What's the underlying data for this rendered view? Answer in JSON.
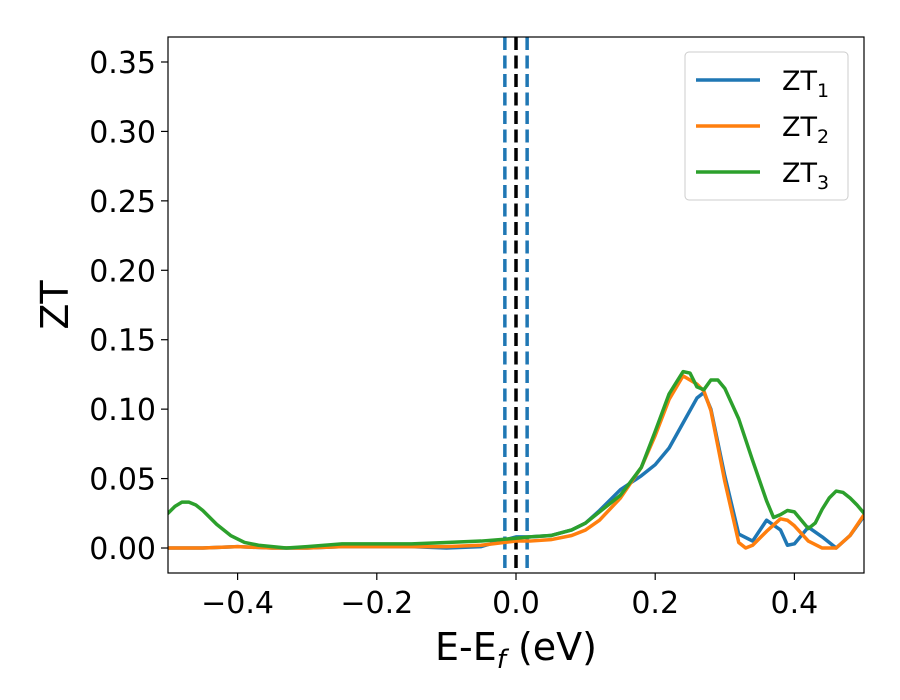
{
  "chart_data": {
    "type": "line",
    "title": "",
    "xlabel": "E-E",
    "xlabel_sub": "f",
    "xlabel_suffix": " (eV)",
    "ylabel": "ZT",
    "xlim": [
      -0.5,
      0.5
    ],
    "ylim": [
      -0.018,
      0.368
    ],
    "xticks": [
      -0.4,
      -0.2,
      0.0,
      0.2,
      0.4
    ],
    "xtick_labels": [
      "−0.4",
      "−0.2",
      "0.0",
      "0.2",
      "0.4"
    ],
    "yticks": [
      0.0,
      0.05,
      0.1,
      0.15,
      0.2,
      0.25,
      0.3,
      0.35
    ],
    "ytick_labels": [
      "0.00",
      "0.05",
      "0.10",
      "0.15",
      "0.20",
      "0.25",
      "0.30",
      "0.35"
    ],
    "grid": false,
    "legend_position": "top-right",
    "vertical_lines": [
      {
        "x": -0.016,
        "color": "#1f77b4",
        "style": "dashed"
      },
      {
        "x": 0.0,
        "color": "#000000",
        "style": "dashed"
      },
      {
        "x": 0.016,
        "color": "#1f77b4",
        "style": "dashed"
      }
    ],
    "series": [
      {
        "name": "ZT",
        "name_sub": "1",
        "color": "#1f77b4",
        "x": [
          -0.5,
          -0.45,
          -0.4,
          -0.35,
          -0.3,
          -0.25,
          -0.2,
          -0.15,
          -0.1,
          -0.05,
          -0.03,
          0.0,
          0.02,
          0.05,
          0.08,
          0.1,
          0.12,
          0.15,
          0.18,
          0.2,
          0.22,
          0.24,
          0.26,
          0.27,
          0.28,
          0.3,
          0.32,
          0.34,
          0.36,
          0.38,
          0.39,
          0.4,
          0.42,
          0.44,
          0.46,
          0.48,
          0.5
        ],
        "y": [
          0.0,
          0.0,
          0.001,
          0.0,
          0.0,
          0.001,
          0.001,
          0.001,
          0.0,
          0.001,
          0.004,
          0.008,
          0.008,
          0.009,
          0.013,
          0.018,
          0.027,
          0.042,
          0.052,
          0.06,
          0.072,
          0.09,
          0.108,
          0.112,
          0.1,
          0.052,
          0.01,
          0.005,
          0.02,
          0.013,
          0.002,
          0.003,
          0.015,
          0.008,
          0.0,
          0.009,
          0.023
        ]
      },
      {
        "name": "ZT",
        "name_sub": "2",
        "color": "#ff7f0e",
        "x": [
          -0.5,
          -0.45,
          -0.4,
          -0.35,
          -0.3,
          -0.25,
          -0.2,
          -0.15,
          -0.1,
          -0.05,
          0.0,
          0.02,
          0.05,
          0.08,
          0.1,
          0.12,
          0.15,
          0.18,
          0.2,
          0.22,
          0.24,
          0.26,
          0.27,
          0.28,
          0.3,
          0.32,
          0.33,
          0.34,
          0.36,
          0.38,
          0.39,
          0.4,
          0.42,
          0.44,
          0.46,
          0.48,
          0.5
        ],
        "y": [
          0.0,
          0.0,
          0.001,
          0.0,
          0.0,
          0.001,
          0.001,
          0.001,
          0.001,
          0.002,
          0.005,
          0.005,
          0.006,
          0.009,
          0.013,
          0.02,
          0.036,
          0.058,
          0.081,
          0.107,
          0.124,
          0.118,
          0.113,
          0.099,
          0.048,
          0.004,
          0.0,
          0.002,
          0.012,
          0.021,
          0.02,
          0.016,
          0.005,
          0.0,
          0.0,
          0.009,
          0.024
        ]
      },
      {
        "name": "ZT",
        "name_sub": "3",
        "color": "#2ca02c",
        "x": [
          -0.5,
          -0.49,
          -0.48,
          -0.47,
          -0.46,
          -0.45,
          -0.43,
          -0.41,
          -0.39,
          -0.37,
          -0.35,
          -0.33,
          -0.3,
          -0.25,
          -0.2,
          -0.15,
          -0.1,
          -0.05,
          0.0,
          0.02,
          0.05,
          0.08,
          0.1,
          0.12,
          0.15,
          0.18,
          0.2,
          0.22,
          0.24,
          0.25,
          0.26,
          0.27,
          0.28,
          0.29,
          0.3,
          0.32,
          0.34,
          0.36,
          0.37,
          0.38,
          0.39,
          0.4,
          0.41,
          0.42,
          0.43,
          0.44,
          0.45,
          0.46,
          0.47,
          0.48,
          0.49,
          0.5
        ],
        "y": [
          0.025,
          0.03,
          0.033,
          0.033,
          0.031,
          0.027,
          0.017,
          0.009,
          0.004,
          0.002,
          0.001,
          0.0,
          0.001,
          0.003,
          0.003,
          0.003,
          0.004,
          0.005,
          0.007,
          0.008,
          0.009,
          0.013,
          0.018,
          0.026,
          0.038,
          0.058,
          0.084,
          0.111,
          0.127,
          0.126,
          0.116,
          0.114,
          0.121,
          0.121,
          0.115,
          0.093,
          0.063,
          0.034,
          0.022,
          0.024,
          0.027,
          0.026,
          0.02,
          0.014,
          0.018,
          0.028,
          0.036,
          0.041,
          0.04,
          0.036,
          0.031,
          0.025
        ]
      }
    ]
  }
}
